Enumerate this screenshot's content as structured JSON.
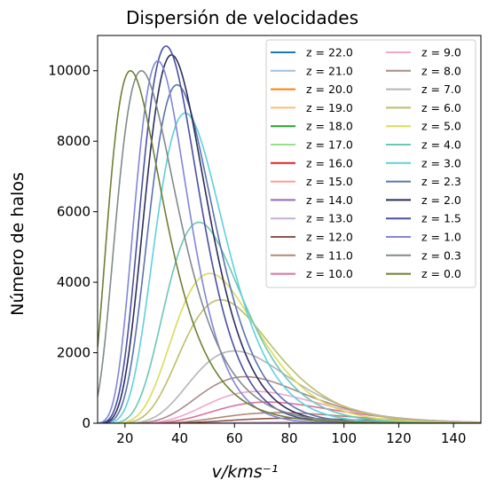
{
  "chart_data": {
    "type": "line",
    "title": "Dispersión de velocidades",
    "xlabel": "v/kms⁻¹",
    "ylabel": "Número de halos",
    "xlim": [
      10,
      150
    ],
    "ylim": [
      0,
      11000
    ],
    "xticks": [
      "20",
      "40",
      "60",
      "80",
      "100",
      "120",
      "140"
    ],
    "yticks": [
      "0",
      "2000",
      "4000",
      "6000",
      "8000",
      "10000"
    ],
    "legend_position": "top-right",
    "series": [
      {
        "name": "z = 22.0",
        "color": "#1f77b4",
        "peak_x": 95,
        "peak_y": 0,
        "sigma": 0.3
      },
      {
        "name": "z = 21.0",
        "color": "#9fc0de",
        "peak_x": 95,
        "peak_y": 0,
        "sigma": 0.3
      },
      {
        "name": "z = 20.0",
        "color": "#ff7f0e",
        "peak_x": 95,
        "peak_y": 0,
        "sigma": 0.3
      },
      {
        "name": "z = 19.0",
        "color": "#ffbb78",
        "peak_x": 95,
        "peak_y": 0,
        "sigma": 0.3
      },
      {
        "name": "z = 18.0",
        "color": "#2ca02c",
        "peak_x": 95,
        "peak_y": 0,
        "sigma": 0.3
      },
      {
        "name": "z = 17.0",
        "color": "#98df8a",
        "peak_x": 95,
        "peak_y": 2,
        "sigma": 0.3
      },
      {
        "name": "z = 16.0",
        "color": "#d62728",
        "peak_x": 92,
        "peak_y": 4,
        "sigma": 0.3
      },
      {
        "name": "z = 15.0",
        "color": "#ff9896",
        "peak_x": 90,
        "peak_y": 8,
        "sigma": 0.3
      },
      {
        "name": "z = 14.0",
        "color": "#9467bd",
        "peak_x": 88,
        "peak_y": 15,
        "sigma": 0.3
      },
      {
        "name": "z = 13.0",
        "color": "#c5b0d5",
        "peak_x": 85,
        "peak_y": 35,
        "sigma": 0.3
      },
      {
        "name": "z = 12.0",
        "color": "#8c564b",
        "peak_x": 80,
        "peak_y": 140,
        "sigma": 0.3
      },
      {
        "name": "z = 11.0",
        "color": "#b08878",
        "peak_x": 76,
        "peak_y": 300,
        "sigma": 0.3
      },
      {
        "name": "z = 10.0",
        "color": "#d9739e",
        "peak_x": 72,
        "peak_y": 600,
        "sigma": 0.3
      },
      {
        "name": "z = 9.0",
        "color": "#eea7cc",
        "peak_x": 68,
        "peak_y": 900,
        "sigma": 0.3
      },
      {
        "name": "z = 8.0",
        "color": "#ab8a8a",
        "peak_x": 64,
        "peak_y": 1320,
        "sigma": 0.3
      },
      {
        "name": "z = 7.0",
        "color": "#b4b4b4",
        "peak_x": 60,
        "peak_y": 2050,
        "sigma": 0.3
      },
      {
        "name": "z = 6.0",
        "color": "#bdbd6a",
        "peak_x": 55,
        "peak_y": 3500,
        "sigma": 0.3
      },
      {
        "name": "z = 5.0",
        "color": "#dbdb5a",
        "peak_x": 51,
        "peak_y": 4250,
        "sigma": 0.3
      },
      {
        "name": "z = 4.0",
        "color": "#6cc7b4",
        "peak_x": 47,
        "peak_y": 5700,
        "sigma": 0.3
      },
      {
        "name": "z = 3.0",
        "color": "#5fd0dc",
        "peak_x": 42,
        "peak_y": 8800,
        "sigma": 0.3
      },
      {
        "name": "z = 2.3",
        "color": "#5a73b0",
        "peak_x": 39,
        "peak_y": 9600,
        "sigma": 0.3
      },
      {
        "name": "z = 2.0",
        "color": "#2c2e5c",
        "peak_x": 37,
        "peak_y": 10450,
        "sigma": 0.3
      },
      {
        "name": "z = 1.5",
        "color": "#4a50a0",
        "peak_x": 35,
        "peak_y": 10700,
        "sigma": 0.3
      },
      {
        "name": "z = 1.0",
        "color": "#8086d6",
        "peak_x": 32,
        "peak_y": 10280,
        "sigma": 0.3
      },
      {
        "name": "z = 0.3",
        "color": "#808a8c",
        "peak_x": 26,
        "peak_y": 10000,
        "sigma": 0.42
      },
      {
        "name": "z = 0.0",
        "color": "#6e8036",
        "peak_x": 22,
        "peak_y": 10000,
        "sigma": 0.45
      }
    ]
  }
}
